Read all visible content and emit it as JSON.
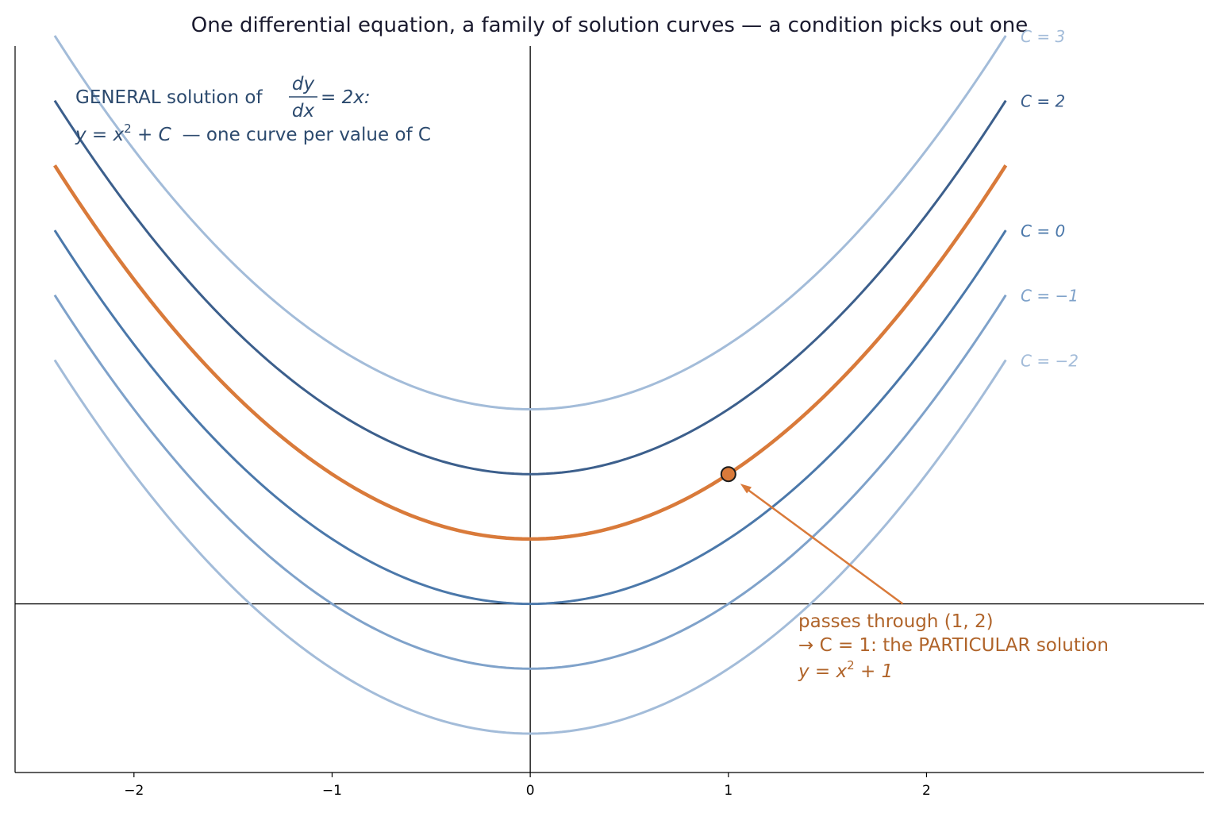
{
  "chart_data": {
    "type": "line",
    "title": "One differential equation, a family of solution curves — a condition picks out one",
    "xlabel": "",
    "ylabel": "",
    "xlim": [
      -2.6,
      3.4
    ],
    "ylim": [
      -2.6,
      8.6
    ],
    "x_domain": [
      -2.4,
      2.4
    ],
    "xticks": [
      -2,
      -1,
      0,
      1,
      2
    ],
    "xtick_labels": [
      "−2",
      "−1",
      "0",
      "1",
      "2"
    ],
    "grid": false,
    "axes_lines": {
      "x0": true,
      "y0": true
    },
    "series": [
      {
        "label": "C = 3",
        "C": 3,
        "color": "#a3bcd9",
        "highlight": false
      },
      {
        "label": "C = 2",
        "C": 2,
        "color": "#3c5f8c",
        "highlight": false
      },
      {
        "label": "",
        "C": 1,
        "color": "#d97a3a",
        "highlight": true
      },
      {
        "label": "C = 0",
        "C": 0,
        "color": "#4b78aa",
        "highlight": false
      },
      {
        "label": "C = −1",
        "C": -1,
        "color": "#7fa2ca",
        "highlight": false
      },
      {
        "label": "C = −2",
        "C": -2,
        "color": "#a3bcd9",
        "highlight": false
      }
    ],
    "point": {
      "x": 1,
      "y": 2,
      "color": "#d97a3a"
    },
    "annotation_anchor": {
      "x": 1.88,
      "y": 0
    }
  },
  "general_box": {
    "line1_prefix": "GENERAL solution of",
    "frac_num": "dy",
    "frac_den": "dx",
    "frac_rhs": "= 2x:",
    "line2_a": "y = x",
    "line2_exp": "2",
    "line2_b": " + C",
    "line2_c": "— one curve per value of C"
  },
  "note": {
    "line1": "passes through (1, 2)",
    "line2": "→ C = 1: the PARTICULAR solution",
    "line3_a": "y = x",
    "line3_exp": "2",
    "line3_b": " + 1"
  }
}
